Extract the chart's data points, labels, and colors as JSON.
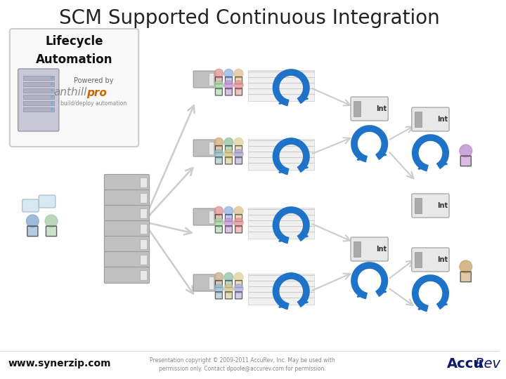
{
  "title": "SCM Supported Continuous Integration",
  "title_fontsize": 20,
  "bg_color": "#ffffff",
  "blue_color": "#1e72c8",
  "arrow_color": "#cccccc",
  "text_bottom_left": "www.synerzip.com",
  "text_bottom_center_1": "Presentation copyright © 2009-2011 AccuRev, Inc. May be used with",
  "text_bottom_center_2": "permission only. Contact dpoole@accurev.com for permission.",
  "lifecycle_label": "Lifecycle\nAutomation",
  "powered_by": "Powered by",
  "anthillpro_1": "anthill",
  "anthillpro_2": "pro",
  "people_colors": [
    "#e08080",
    "#80a0e0",
    "#e0c080",
    "#90c890",
    "#c090d0",
    "#e08890"
  ],
  "people_colors2": [
    "#c8a080",
    "#80c0a0",
    "#e0d090",
    "#90b8c8",
    "#d0b080",
    "#a8a8d0"
  ],
  "stack_color": "#b0b0b0",
  "bar_bg": "#f0f0f0",
  "bar_line": "#cccccc",
  "int_bg": "#e8e8e8",
  "int_border": "#aaaaaa",
  "person_purple": "#c090cc",
  "person_tan": "#c8a870",
  "bubble_color": "#d0e0f0"
}
